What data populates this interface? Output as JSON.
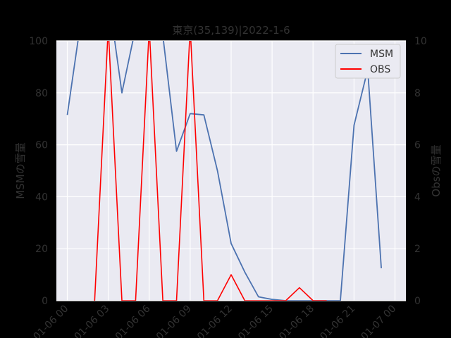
{
  "chart_data": {
    "type": "line",
    "title": "東京(35,139)|2022-1-6",
    "ylabel_left": "MSMの雪量",
    "ylabel_right": "Obsの雪量",
    "ylim_left": [
      0,
      100
    ],
    "ylim_right": [
      0,
      10
    ],
    "yticks_left": [
      0,
      20,
      40,
      60,
      80,
      100
    ],
    "yticks_right": [
      0,
      2,
      4,
      6,
      8,
      10
    ],
    "xlim_hours": [
      -0.8,
      24.8
    ],
    "xticks": [
      {
        "hour": 0,
        "label": "01-06 00"
      },
      {
        "hour": 3,
        "label": "01-06 03"
      },
      {
        "hour": 6,
        "label": "01-06 06"
      },
      {
        "hour": 9,
        "label": "01-06 09"
      },
      {
        "hour": 12,
        "label": "01-06 12"
      },
      {
        "hour": 15,
        "label": "01-06 15"
      },
      {
        "hour": 18,
        "label": "01-06 18"
      },
      {
        "hour": 21,
        "label": "01-06 21"
      },
      {
        "hour": 24,
        "label": "01-07 00"
      }
    ],
    "grid": true,
    "legend_position": "top-right",
    "series": [
      {
        "name": "MSM",
        "axis": "left",
        "color": "#4c72b0",
        "x": [
          0,
          1,
          2,
          3,
          4,
          5,
          6,
          7,
          8,
          9,
          10,
          11,
          12,
          13,
          14,
          15,
          16,
          17,
          18,
          19,
          20,
          21,
          22,
          23
        ],
        "values": [
          71.5,
          108,
          125,
          118,
          80,
          105,
          110,
          102,
          57.5,
          72,
          71.5,
          50,
          22,
          11,
          1.5,
          0.5,
          0,
          0,
          0,
          0,
          0,
          67.5,
          89,
          12.5
        ]
      },
      {
        "name": "OBS",
        "axis": "right",
        "color": "#ff0000",
        "x": [
          2,
          3,
          4,
          5,
          6,
          7,
          8,
          9,
          10,
          11,
          12,
          13,
          14,
          15,
          16,
          17,
          18,
          19
        ],
        "values": [
          0,
          10.5,
          0,
          0,
          10.5,
          0,
          0,
          10.5,
          0,
          0,
          1,
          0,
          0,
          0,
          0,
          0.5,
          0,
          0
        ]
      }
    ]
  }
}
